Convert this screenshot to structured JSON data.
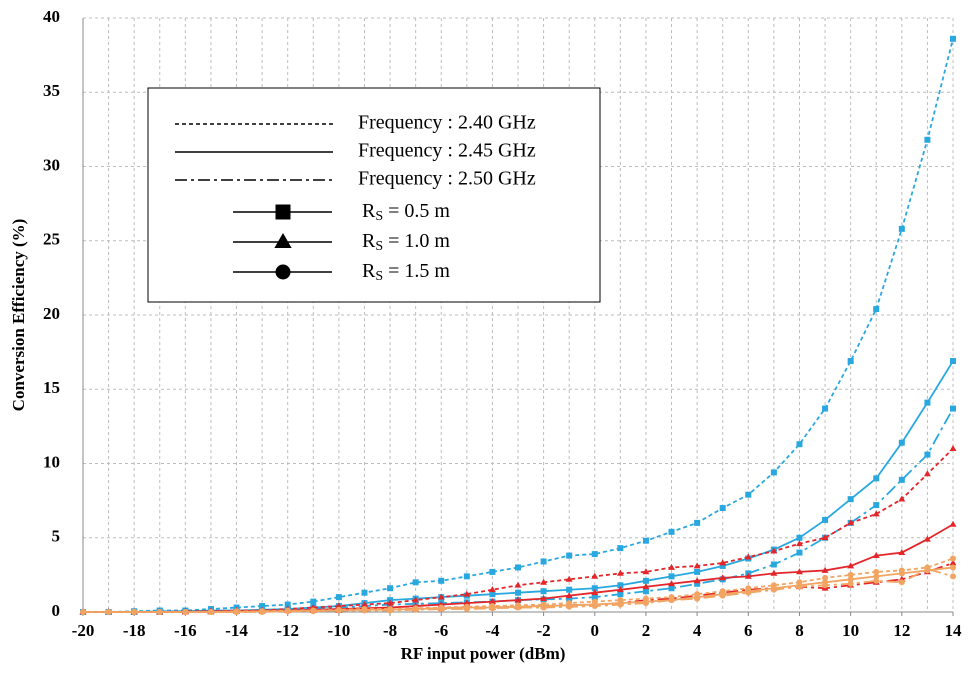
{
  "chart_data": {
    "type": "line",
    "x_label": "RF input power (dBm)",
    "y_label": "Conversion Efficiency (%)",
    "x": [
      -20,
      -19,
      -18,
      -17,
      -16,
      -15,
      -14,
      -13,
      -12,
      -11,
      -10,
      -9,
      -8,
      -7,
      -6,
      -5,
      -4,
      -3,
      -2,
      -1,
      0,
      1,
      2,
      3,
      4,
      5,
      6,
      7,
      8,
      9,
      10,
      11,
      12,
      13,
      14
    ],
    "xlim": [
      -20,
      14
    ],
    "xticks": [
      -20,
      -18,
      -16,
      -14,
      -12,
      -10,
      -8,
      -6,
      -4,
      -2,
      0,
      2,
      4,
      6,
      8,
      10,
      12,
      14
    ],
    "ylim": [
      0,
      40
    ],
    "yticks": [
      0,
      5,
      10,
      15,
      20,
      25,
      30,
      35,
      40
    ],
    "grid": true,
    "series": [
      {
        "color": "#29a8e0",
        "dash": "dashed",
        "marker": "square",
        "values": [
          0,
          0,
          0.05,
          0.1,
          0.1,
          0.2,
          0.3,
          0.4,
          0.5,
          0.7,
          1.0,
          1.3,
          1.6,
          2.0,
          2.1,
          2.4,
          2.7,
          3.0,
          3.4,
          3.8,
          3.9,
          4.3,
          4.8,
          5.4,
          6.0,
          7.0,
          7.9,
          9.4,
          11.3,
          13.7,
          16.9,
          20.4,
          25.8,
          31.8,
          38.6
        ]
      },
      {
        "color": "#29a8e0",
        "dash": "solid",
        "marker": "square",
        "values": [
          0,
          0,
          0,
          0.05,
          0.05,
          0.1,
          0.1,
          0.15,
          0.2,
          0.3,
          0.4,
          0.6,
          0.8,
          0.9,
          1.0,
          1.1,
          1.2,
          1.3,
          1.4,
          1.5,
          1.6,
          1.8,
          2.1,
          2.4,
          2.7,
          3.1,
          3.6,
          4.2,
          5.0,
          6.2,
          7.6,
          9.0,
          11.4,
          14.1,
          16.9
        ]
      },
      {
        "color": "#29a8e0",
        "dash": "dashdot",
        "marker": "square",
        "values": [
          0,
          0,
          0,
          0,
          0.05,
          0.05,
          0.1,
          0.1,
          0.15,
          0.2,
          0.3,
          0.4,
          0.5,
          0.55,
          0.6,
          0.65,
          0.7,
          0.8,
          0.85,
          0.9,
          1.0,
          1.2,
          1.4,
          1.6,
          1.9,
          2.2,
          2.6,
          3.2,
          4.0,
          5.0,
          6.0,
          7.2,
          8.9,
          10.6,
          13.7
        ]
      },
      {
        "color": "#e3262a",
        "dash": "dashed",
        "marker": "triangle",
        "values": [
          0,
          0,
          0,
          0,
          0.05,
          0.05,
          0.1,
          0.1,
          0.2,
          0.3,
          0.4,
          0.5,
          0.6,
          0.8,
          1.0,
          1.2,
          1.5,
          1.8,
          2.0,
          2.2,
          2.4,
          2.6,
          2.7,
          3.0,
          3.1,
          3.3,
          3.7,
          4.1,
          4.6,
          5.0,
          6.0,
          6.6,
          7.6,
          9.3,
          11.0
        ]
      },
      {
        "color": "#e3262a",
        "dash": "solid",
        "marker": "triangle",
        "values": [
          0,
          0,
          0,
          0,
          0,
          0.05,
          0.05,
          0.1,
          0.1,
          0.15,
          0.2,
          0.25,
          0.3,
          0.4,
          0.5,
          0.6,
          0.7,
          0.8,
          0.9,
          1.1,
          1.3,
          1.5,
          1.7,
          1.9,
          2.1,
          2.3,
          2.4,
          2.6,
          2.7,
          2.8,
          3.1,
          3.8,
          4.0,
          4.9,
          5.9
        ]
      },
      {
        "color": "#e3262a",
        "dash": "dashdot",
        "marker": "triangle",
        "values": [
          0,
          0,
          0,
          0,
          0,
          0,
          0.05,
          0.05,
          0.1,
          0.1,
          0.1,
          0.15,
          0.2,
          0.2,
          0.25,
          0.3,
          0.3,
          0.35,
          0.4,
          0.45,
          0.5,
          0.6,
          0.8,
          0.9,
          1.1,
          1.3,
          1.5,
          1.6,
          1.7,
          1.6,
          1.8,
          2.0,
          2.2,
          2.7,
          3.3
        ]
      },
      {
        "color": "#f2a462",
        "dash": "dashed",
        "marker": "circle",
        "values": [
          0,
          0,
          0,
          0,
          0,
          0,
          0.05,
          0.05,
          0.1,
          0.1,
          0.15,
          0.2,
          0.2,
          0.25,
          0.3,
          0.35,
          0.4,
          0.45,
          0.5,
          0.6,
          0.7,
          0.8,
          0.9,
          1.0,
          1.2,
          1.4,
          1.6,
          1.8,
          2.0,
          2.3,
          2.5,
          2.7,
          2.8,
          3.0,
          3.6
        ]
      },
      {
        "color": "#f2a462",
        "dash": "solid",
        "marker": "circle",
        "values": [
          0,
          0,
          0,
          0,
          0,
          0,
          0,
          0.05,
          0.05,
          0.1,
          0.1,
          0.15,
          0.15,
          0.2,
          0.25,
          0.3,
          0.3,
          0.35,
          0.4,
          0.45,
          0.5,
          0.6,
          0.7,
          0.8,
          1.0,
          1.2,
          1.4,
          1.6,
          1.8,
          2.0,
          2.2,
          2.4,
          2.6,
          2.8,
          3.0
        ]
      },
      {
        "color": "#f2a462",
        "dash": "dashdot",
        "marker": "circle",
        "values": [
          0,
          0,
          0,
          0,
          0,
          0,
          0,
          0,
          0.05,
          0.05,
          0.1,
          0.1,
          0.1,
          0.15,
          0.2,
          0.2,
          0.25,
          0.3,
          0.3,
          0.35,
          0.4,
          0.5,
          0.6,
          0.8,
          0.9,
          1.1,
          1.3,
          1.5,
          1.7,
          1.8,
          1.9,
          2.1,
          2.0,
          2.9,
          2.4
        ]
      }
    ],
    "legend": {
      "line_styles": [
        {
          "label": "Frequency : 2.40 GHz",
          "dash": "dashed"
        },
        {
          "label": "Frequency : 2.45 GHz",
          "dash": "solid"
        },
        {
          "label": "Frequency : 2.50 GHz",
          "dash": "dashdot"
        }
      ],
      "markers": [
        {
          "symbol": "R",
          "subscript": "S",
          "text": " = 0.5 m",
          "marker": "square"
        },
        {
          "symbol": "R",
          "subscript": "S",
          "text": " = 1.0 m",
          "marker": "triangle"
        },
        {
          "symbol": "R",
          "subscript": "S",
          "text": " = 1.5 m",
          "marker": "circle"
        }
      ]
    }
  }
}
